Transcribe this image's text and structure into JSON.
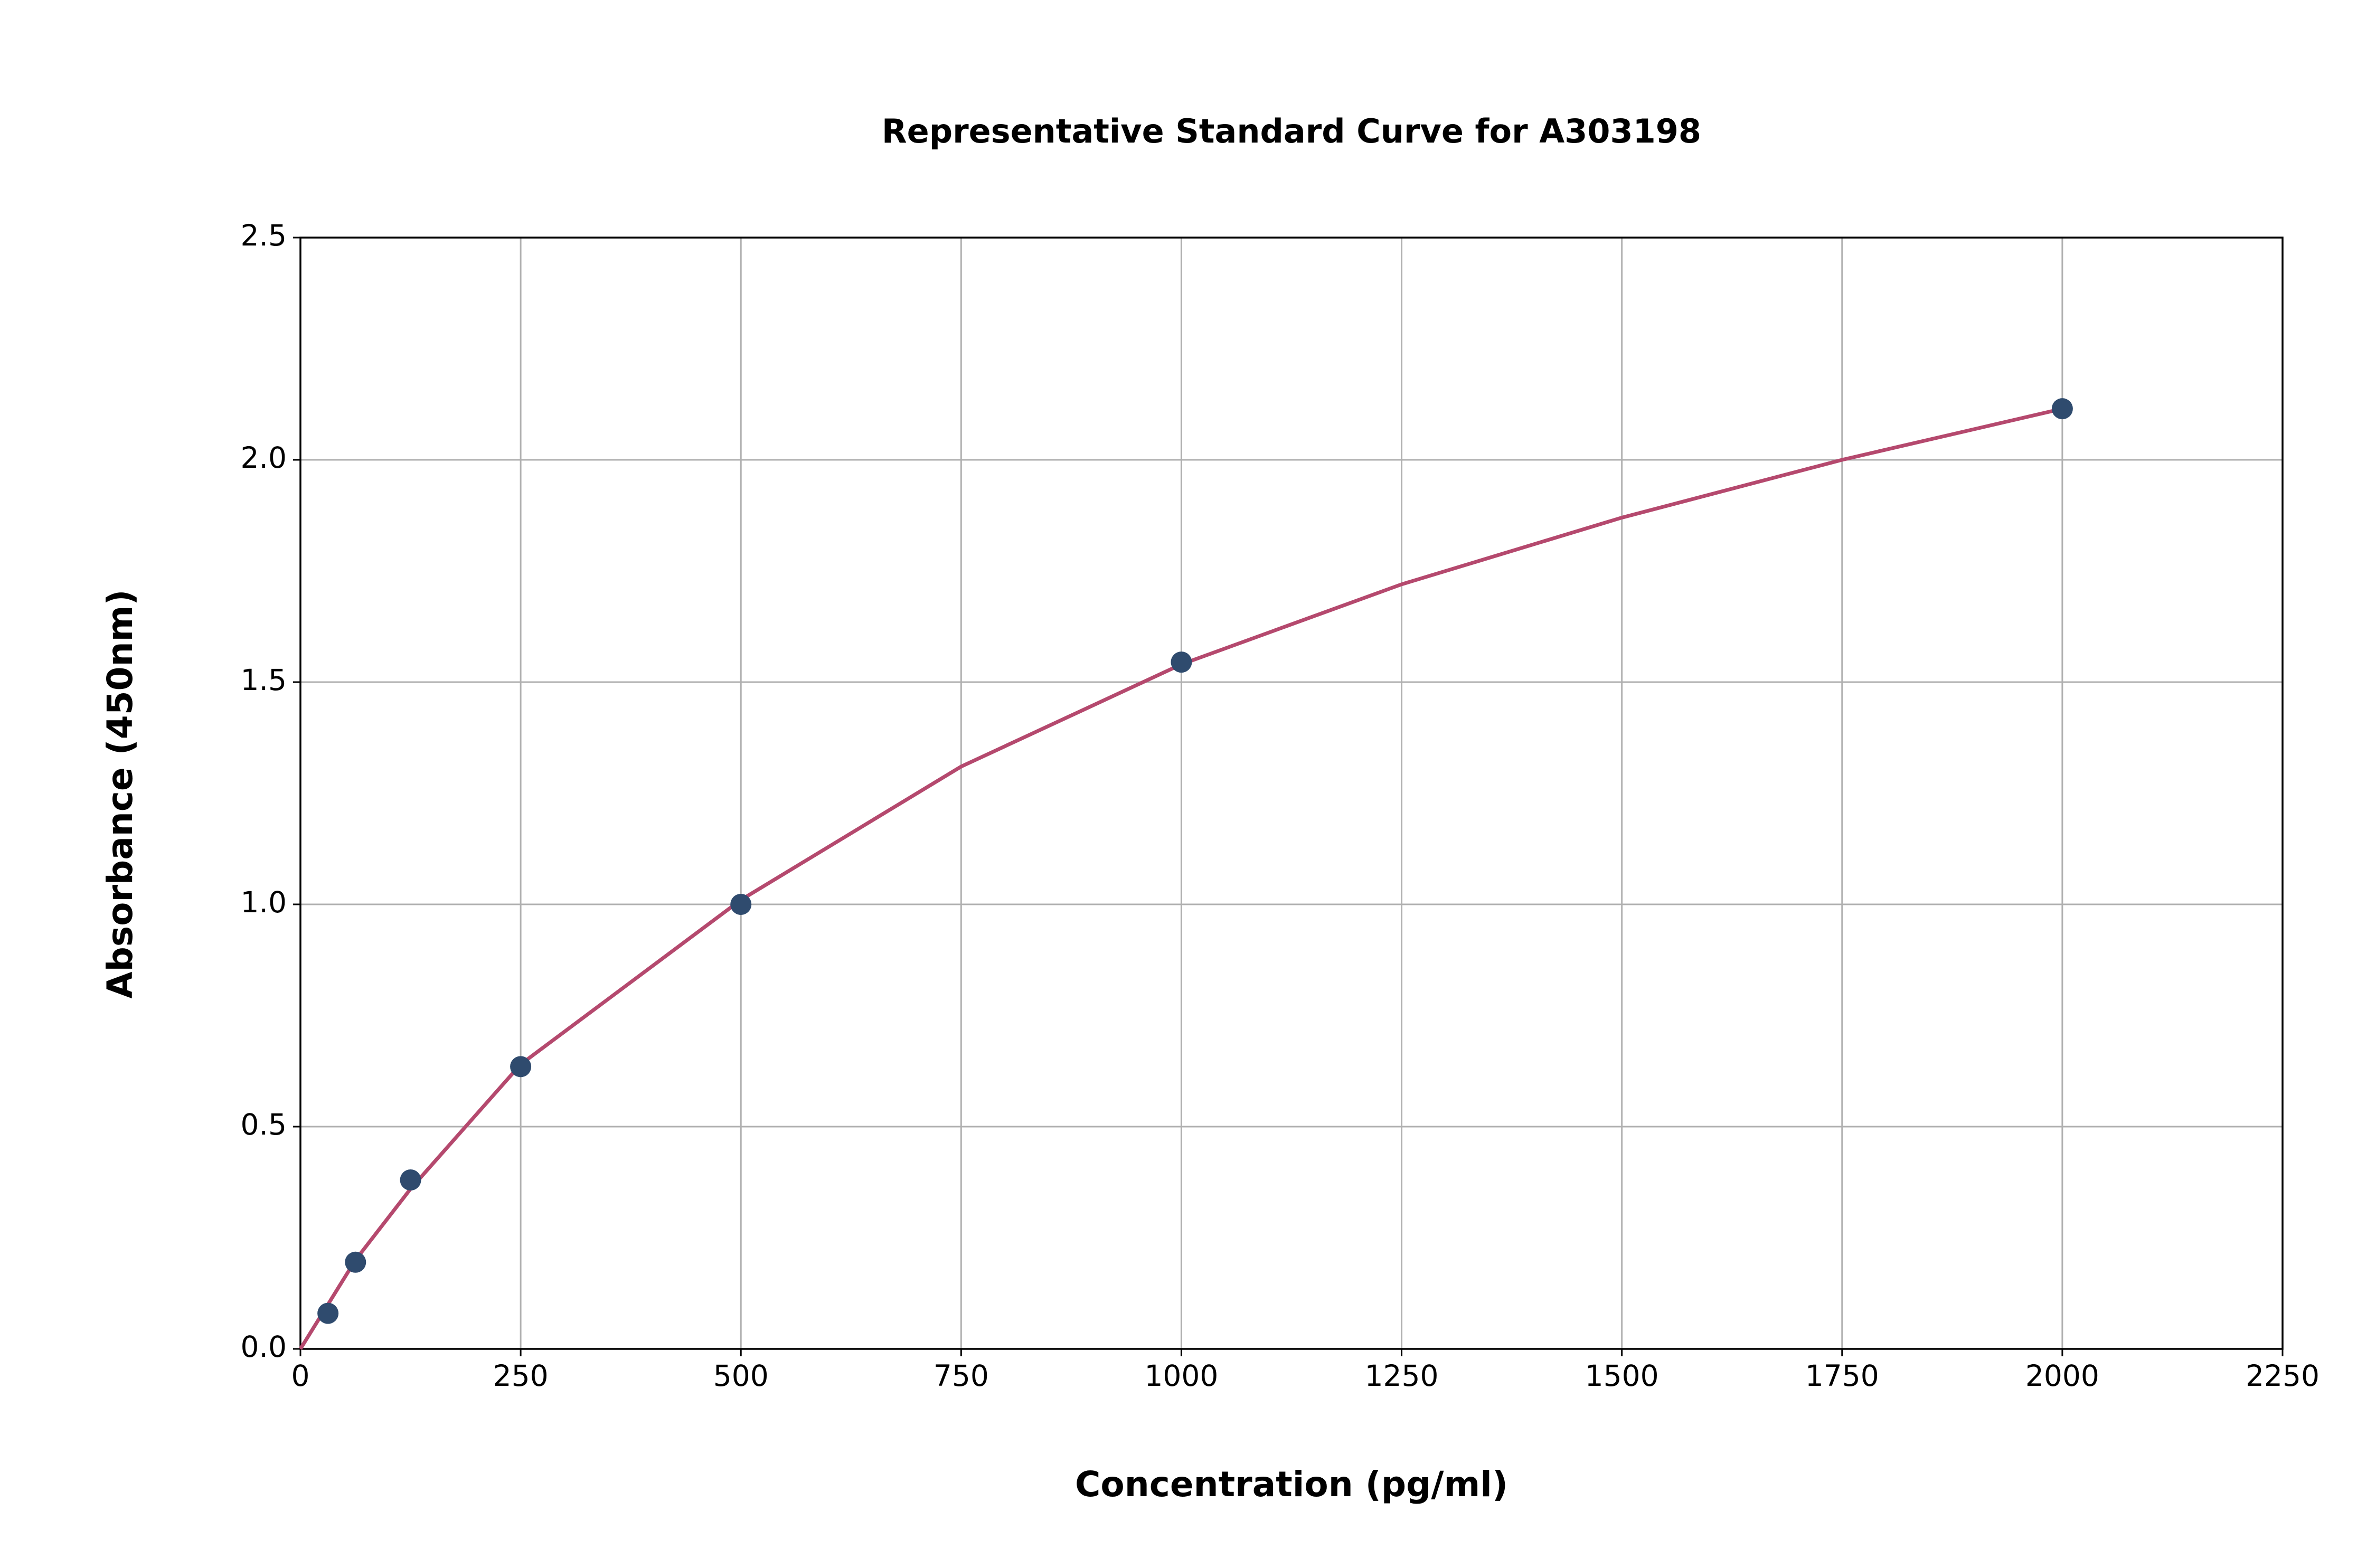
{
  "chart_data": {
    "type": "scatter",
    "title": "Representative Standard Curve for A303198",
    "x_label": "Concentration (pg/ml)",
    "y_label": "Absorbance (450nm)",
    "xlim": [
      0,
      2250
    ],
    "xticks": [
      0,
      250,
      500,
      750,
      1000,
      1250,
      1500,
      1750,
      2000,
      2250
    ],
    "ylim": [
      0,
      2.5
    ],
    "yticks": [
      {
        "value": 0,
        "label": "0.0"
      },
      0.5,
      {
        "value": 1,
        "label": "1.0"
      },
      1.5,
      {
        "value": 2,
        "label": "2.0"
      },
      2.5
    ],
    "grid": true,
    "series": [
      {
        "type": "line",
        "color": "#b5496e",
        "x": [
          0,
          31.25,
          62.5,
          125,
          250,
          500,
          750,
          1000,
          1250,
          1500,
          1750,
          2000
        ],
        "values": [
          0,
          0.1,
          0.2,
          0.36,
          0.64,
          1.01,
          1.31,
          1.54,
          1.72,
          1.87,
          2.0,
          2.115
        ]
      },
      {
        "type": "scatter",
        "color": "#2f4b6e",
        "x": [
          31.25,
          62.5,
          125,
          250,
          500,
          1000,
          2000
        ],
        "values": [
          0.08,
          0.195,
          0.38,
          0.635,
          1.0,
          1.545,
          2.115
        ]
      }
    ]
  }
}
